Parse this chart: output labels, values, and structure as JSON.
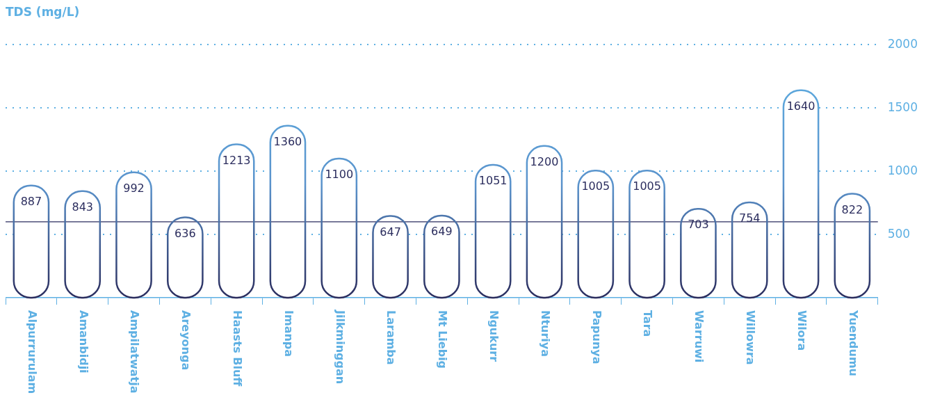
{
  "chart_data": {
    "type": "bar",
    "title": "TDS (mg/L)",
    "categories": [
      "Alpurrurulam",
      "Amanbidji",
      "Ampilatwatja",
      "Areyonga",
      "Haasts Bluff",
      "Imanpa",
      "Jilkminggan",
      "Laramba",
      "Mt Liebig",
      "Ngukurr",
      "Nturiya",
      "Papunya",
      "Tara",
      "Warruwi",
      "Willowra",
      "Wilora",
      "Yuendumu"
    ],
    "values": [
      887,
      843,
      992,
      636,
      1213,
      1360,
      1100,
      647,
      649,
      1051,
      1200,
      1005,
      1005,
      703,
      754,
      1640,
      822
    ],
    "color": "#ffffff",
    "data_labels": true,
    "ylim": [
      0,
      2000
    ],
    "yticks": [
      500,
      1000,
      1500,
      2000
    ],
    "grid": "y",
    "legend": false,
    "ref_lines": [
      {
        "axis": "y",
        "value": 600,
        "color": "#2b2d5e"
      }
    ]
  }
}
